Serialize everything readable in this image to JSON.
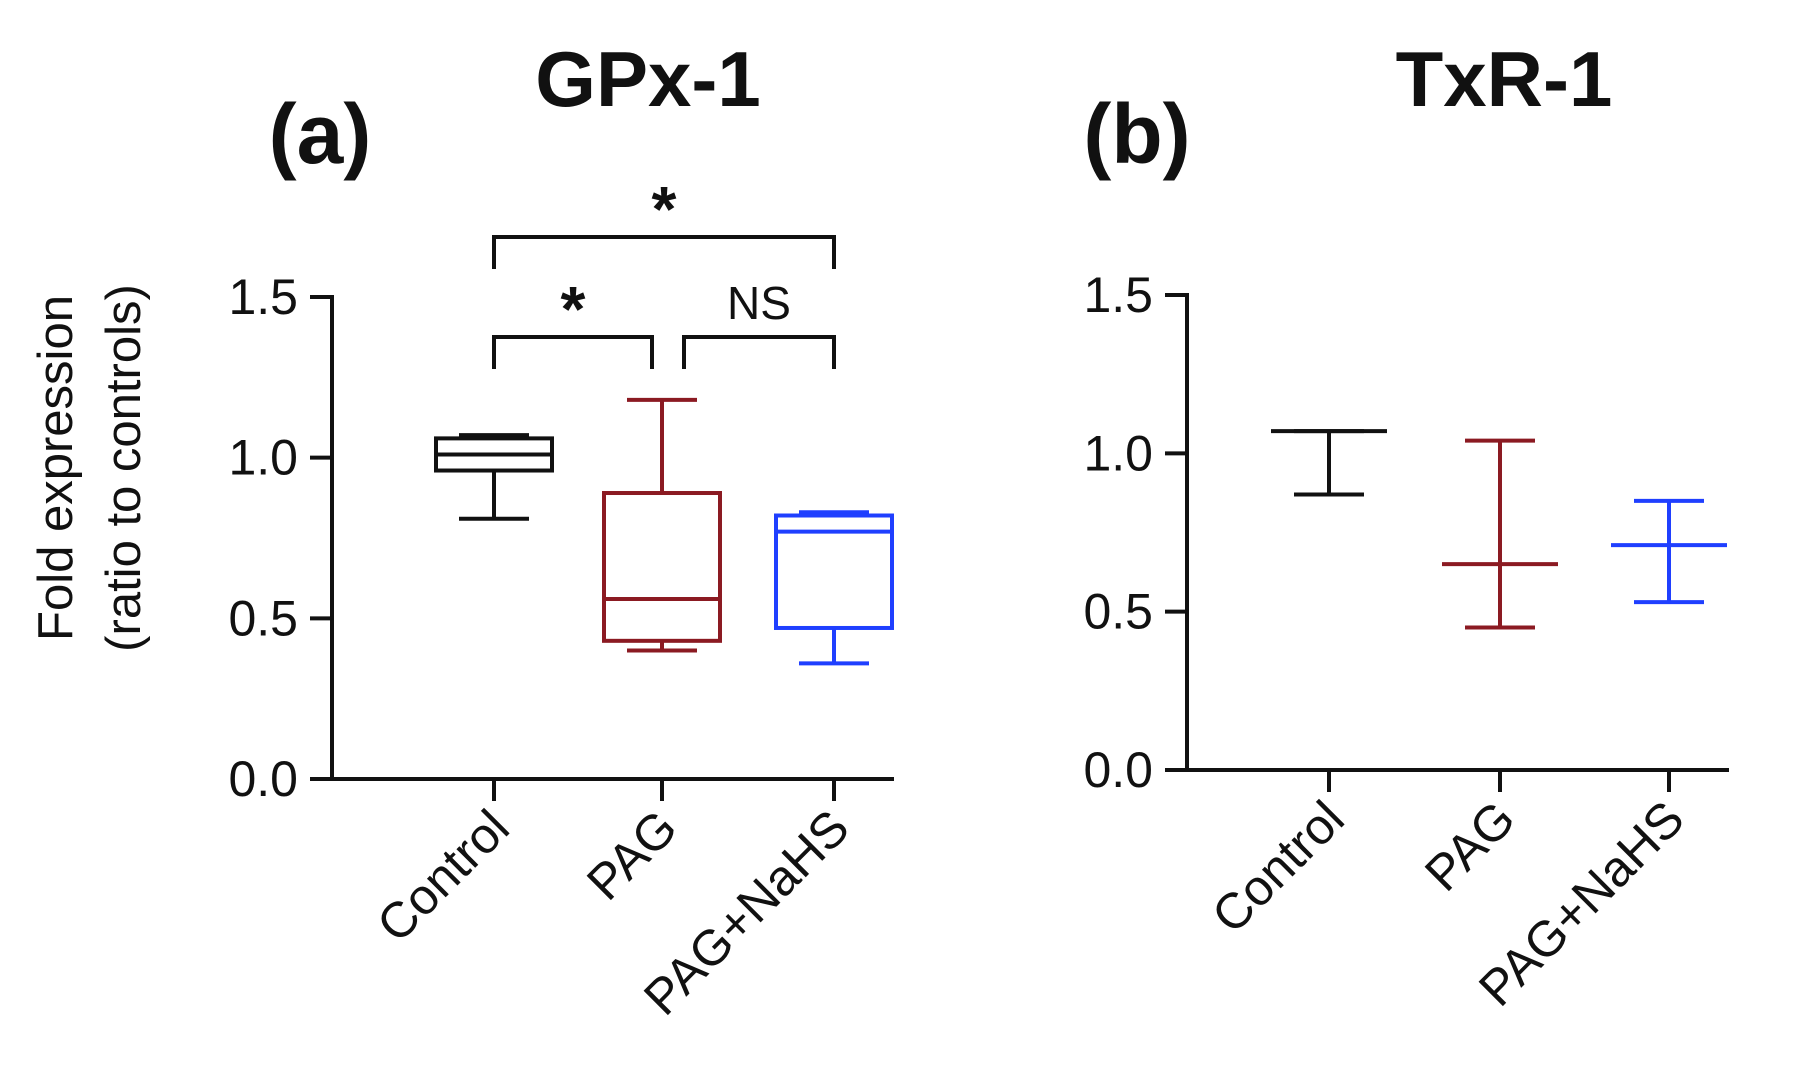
{
  "y_axis_label_line1": "Fold expression",
  "y_axis_label_line2": "(ratio to controls)",
  "chart_data": [
    {
      "type": "box",
      "panel_label": "(a)",
      "title": "GPx-1",
      "ylim": [
        0,
        1.5
      ],
      "yticks": [
        0.0,
        0.5,
        1.0,
        1.5
      ],
      "ytick_labels": [
        "0.0",
        "0.5",
        "1.0",
        "1.5"
      ],
      "categories": [
        "Control",
        "PAG",
        "PAG+NaHS"
      ],
      "colors": [
        "#111111",
        "#8b1a22",
        "#1f3fff"
      ],
      "boxes": [
        {
          "min": 0.81,
          "q1": 0.96,
          "median": 1.01,
          "q3": 1.06,
          "max": 1.07
        },
        {
          "min": 0.4,
          "q1": 0.43,
          "median": 0.56,
          "q3": 0.89,
          "max": 1.18
        },
        {
          "min": 0.36,
          "q1": 0.47,
          "median": 0.77,
          "q3": 0.82,
          "max": 0.83
        }
      ],
      "significance": [
        {
          "from": 0,
          "to": 1,
          "label": "*",
          "level": 1
        },
        {
          "from": 1,
          "to": 2,
          "label": "NS",
          "level": 1
        },
        {
          "from": 0,
          "to": 2,
          "label": "*",
          "level": 2
        }
      ]
    },
    {
      "type": "errorbar",
      "panel_label": "(b)",
      "title": "TxR-1",
      "ylim": [
        0,
        1.5
      ],
      "yticks": [
        0.0,
        0.5,
        1.0,
        1.5
      ],
      "ytick_labels": [
        "0.0",
        "0.5",
        "1.0",
        "1.5"
      ],
      "categories": [
        "Control",
        "PAG",
        "PAG+NaHS"
      ],
      "colors": [
        "#111111",
        "#8b1a22",
        "#1f3fff"
      ],
      "points": [
        {
          "center": 1.07,
          "low": 0.87,
          "high": 1.07
        },
        {
          "center": 0.65,
          "low": 0.45,
          "high": 1.04
        },
        {
          "center": 0.71,
          "low": 0.53,
          "high": 0.85
        }
      ]
    }
  ]
}
